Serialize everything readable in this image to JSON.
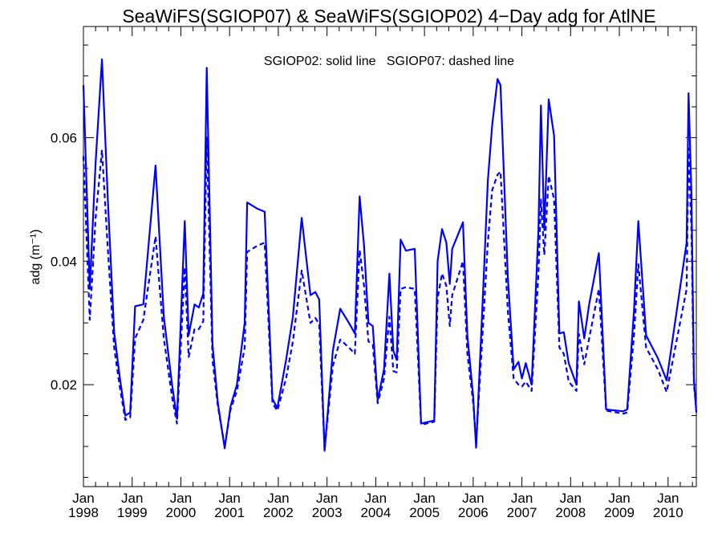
{
  "chart_data": {
    "type": "line",
    "title": "SeaWiFS(SGIOP07) & SeaWiFS(SGIOP02) 4−Day adg for AtlNE",
    "annotation": "SGIOP02: solid line   SGIOP07: dashed line",
    "xlabel": "",
    "ylabel": "adg (m⁻¹)",
    "xlim": [
      1998.0,
      2010.58
    ],
    "ylim": [
      0.0035,
      0.078
    ],
    "yticks": [
      0.02,
      0.04,
      0.06
    ],
    "ytick_labels": [
      "0.02",
      "0.04",
      "0.06"
    ],
    "x_month_labels": [
      "Jan",
      "Jan",
      "Jan",
      "Jan",
      "Jan",
      "Jan",
      "Jan",
      "Jan",
      "Jan",
      "Jan",
      "Jan",
      "Jan",
      "Jan"
    ],
    "x_year_labels": [
      "1998",
      "1999",
      "2000",
      "2001",
      "2002",
      "2003",
      "2004",
      "2005",
      "2006",
      "2007",
      "2008",
      "2009",
      "2010"
    ],
    "grid": false,
    "color": "#0000ff",
    "series": [
      {
        "name": "SGIOP02",
        "style": "solid",
        "points": [
          [
            1998.0,
            0.0685
          ],
          [
            1998.13,
            0.0355
          ],
          [
            1998.25,
            0.056
          ],
          [
            1998.38,
            0.0727
          ],
          [
            1998.5,
            0.05
          ],
          [
            1998.63,
            0.0285
          ],
          [
            1998.75,
            0.021
          ],
          [
            1998.86,
            0.015
          ],
          [
            1998.96,
            0.0155
          ],
          [
            1999.06,
            0.0327
          ],
          [
            1999.23,
            0.033
          ],
          [
            1999.48,
            0.0555
          ],
          [
            1999.65,
            0.031
          ],
          [
            1999.82,
            0.02
          ],
          [
            1999.92,
            0.0145
          ],
          [
            2000.08,
            0.0465
          ],
          [
            2000.16,
            0.028
          ],
          [
            2000.28,
            0.033
          ],
          [
            2000.37,
            0.0325
          ],
          [
            2000.46,
            0.0348
          ],
          [
            2000.53,
            0.0713
          ],
          [
            2000.65,
            0.0265
          ],
          [
            2000.76,
            0.017
          ],
          [
            2000.9,
            0.0097
          ],
          [
            2001.02,
            0.0165
          ],
          [
            2001.15,
            0.02
          ],
          [
            2001.31,
            0.03
          ],
          [
            2001.36,
            0.0495
          ],
          [
            2001.57,
            0.0485
          ],
          [
            2001.72,
            0.048
          ],
          [
            2001.88,
            0.0177
          ],
          [
            2001.98,
            0.0162
          ],
          [
            2002.16,
            0.024
          ],
          [
            2002.3,
            0.031
          ],
          [
            2002.48,
            0.047
          ],
          [
            2002.66,
            0.0345
          ],
          [
            2002.76,
            0.035
          ],
          [
            2002.84,
            0.0338
          ],
          [
            2002.95,
            0.0093
          ],
          [
            2003.12,
            0.0255
          ],
          [
            2003.27,
            0.0323
          ],
          [
            2003.45,
            0.03
          ],
          [
            2003.57,
            0.0283
          ],
          [
            2003.67,
            0.0505
          ],
          [
            2003.76,
            0.0425
          ],
          [
            2003.85,
            0.03
          ],
          [
            2003.94,
            0.0295
          ],
          [
            2004.04,
            0.0175
          ],
          [
            2004.17,
            0.0225
          ],
          [
            2004.28,
            0.038
          ],
          [
            2004.36,
            0.0255
          ],
          [
            2004.43,
            0.024
          ],
          [
            2004.51,
            0.0435
          ],
          [
            2004.62,
            0.0417
          ],
          [
            2004.8,
            0.042
          ],
          [
            2004.93,
            0.0137
          ],
          [
            2005.2,
            0.0142
          ],
          [
            2005.27,
            0.04
          ],
          [
            2005.36,
            0.0452
          ],
          [
            2005.45,
            0.043
          ],
          [
            2005.52,
            0.0363
          ],
          [
            2005.57,
            0.042
          ],
          [
            2005.79,
            0.0463
          ],
          [
            2005.88,
            0.028
          ],
          [
            2006.0,
            0.018
          ],
          [
            2006.06,
            0.0098
          ],
          [
            2006.22,
            0.038
          ],
          [
            2006.3,
            0.053
          ],
          [
            2006.39,
            0.062
          ],
          [
            2006.5,
            0.0695
          ],
          [
            2006.56,
            0.0685
          ],
          [
            2006.71,
            0.0375
          ],
          [
            2006.83,
            0.0225
          ],
          [
            2006.93,
            0.0237
          ],
          [
            2007.0,
            0.021
          ],
          [
            2007.08,
            0.0235
          ],
          [
            2007.2,
            0.02
          ],
          [
            2007.34,
            0.045
          ],
          [
            2007.39,
            0.0652
          ],
          [
            2007.46,
            0.045
          ],
          [
            2007.55,
            0.0662
          ],
          [
            2007.66,
            0.0603
          ],
          [
            2007.77,
            0.0283
          ],
          [
            2007.86,
            0.0285
          ],
          [
            2007.96,
            0.0235
          ],
          [
            2008.12,
            0.02
          ],
          [
            2008.17,
            0.0335
          ],
          [
            2008.28,
            0.0275
          ],
          [
            2008.38,
            0.033
          ],
          [
            2008.58,
            0.0413
          ],
          [
            2008.73,
            0.016
          ],
          [
            2009.08,
            0.0157
          ],
          [
            2009.16,
            0.016
          ],
          [
            2009.3,
            0.032
          ],
          [
            2009.39,
            0.0465
          ],
          [
            2009.55,
            0.028
          ],
          [
            2009.79,
            0.0243
          ],
          [
            2009.97,
            0.0207
          ],
          [
            2010.38,
            0.043
          ],
          [
            2010.42,
            0.0672
          ],
          [
            2010.48,
            0.051
          ],
          [
            2010.53,
            0.021
          ],
          [
            2010.58,
            0.0155
          ]
        ]
      },
      {
        "name": "SGIOP07",
        "style": "dashed",
        "points": [
          [
            1998.0,
            0.057
          ],
          [
            1998.13,
            0.0305
          ],
          [
            1998.25,
            0.047
          ],
          [
            1998.38,
            0.058
          ],
          [
            1998.5,
            0.042
          ],
          [
            1998.63,
            0.026
          ],
          [
            1998.75,
            0.0195
          ],
          [
            1998.86,
            0.0143
          ],
          [
            1998.96,
            0.0147
          ],
          [
            1999.06,
            0.0275
          ],
          [
            1999.23,
            0.0305
          ],
          [
            1999.48,
            0.044
          ],
          [
            1999.65,
            0.0275
          ],
          [
            1999.82,
            0.018
          ],
          [
            1999.92,
            0.0137
          ],
          [
            2000.08,
            0.039
          ],
          [
            2000.16,
            0.0245
          ],
          [
            2000.28,
            0.029
          ],
          [
            2000.37,
            0.029
          ],
          [
            2000.46,
            0.0303
          ],
          [
            2000.53,
            0.06
          ],
          [
            2000.65,
            0.024
          ],
          [
            2000.76,
            0.0165
          ],
          [
            2000.9,
            0.01
          ],
          [
            2001.02,
            0.016
          ],
          [
            2001.15,
            0.019
          ],
          [
            2001.31,
            0.026
          ],
          [
            2001.36,
            0.0415
          ],
          [
            2001.57,
            0.0425
          ],
          [
            2001.72,
            0.043
          ],
          [
            2001.88,
            0.017
          ],
          [
            2001.98,
            0.0158
          ],
          [
            2002.16,
            0.021
          ],
          [
            2002.3,
            0.027
          ],
          [
            2002.48,
            0.0385
          ],
          [
            2002.66,
            0.03
          ],
          [
            2002.76,
            0.0308
          ],
          [
            2002.84,
            0.0298
          ],
          [
            2002.95,
            0.0095
          ],
          [
            2003.12,
            0.023
          ],
          [
            2003.27,
            0.0273
          ],
          [
            2003.45,
            0.026
          ],
          [
            2003.57,
            0.025
          ],
          [
            2003.67,
            0.0418
          ],
          [
            2003.76,
            0.036
          ],
          [
            2003.85,
            0.027
          ],
          [
            2003.94,
            0.0265
          ],
          [
            2004.04,
            0.017
          ],
          [
            2004.17,
            0.021
          ],
          [
            2004.28,
            0.031
          ],
          [
            2004.36,
            0.0222
          ],
          [
            2004.43,
            0.022
          ],
          [
            2004.51,
            0.0355
          ],
          [
            2004.62,
            0.0358
          ],
          [
            2004.8,
            0.0355
          ],
          [
            2004.93,
            0.0135
          ],
          [
            2005.2,
            0.014
          ],
          [
            2005.27,
            0.034
          ],
          [
            2005.36,
            0.038
          ],
          [
            2005.45,
            0.036
          ],
          [
            2005.52,
            0.0295
          ],
          [
            2005.57,
            0.0345
          ],
          [
            2005.79,
            0.04
          ],
          [
            2005.88,
            0.025
          ],
          [
            2006.0,
            0.017
          ],
          [
            2006.06,
            0.0105
          ],
          [
            2006.22,
            0.032
          ],
          [
            2006.3,
            0.043
          ],
          [
            2006.39,
            0.0515
          ],
          [
            2006.5,
            0.054
          ],
          [
            2006.56,
            0.0545
          ],
          [
            2006.71,
            0.032
          ],
          [
            2006.83,
            0.021
          ],
          [
            2006.93,
            0.02
          ],
          [
            2007.0,
            0.0197
          ],
          [
            2007.08,
            0.0205
          ],
          [
            2007.2,
            0.019
          ],
          [
            2007.34,
            0.038
          ],
          [
            2007.39,
            0.05
          ],
          [
            2007.46,
            0.041
          ],
          [
            2007.55,
            0.0538
          ],
          [
            2007.66,
            0.05
          ],
          [
            2007.77,
            0.026
          ],
          [
            2007.86,
            0.025
          ],
          [
            2007.96,
            0.0205
          ],
          [
            2008.12,
            0.019
          ],
          [
            2008.17,
            0.0282
          ],
          [
            2008.28,
            0.0233
          ],
          [
            2008.38,
            0.0275
          ],
          [
            2008.58,
            0.0355
          ],
          [
            2008.73,
            0.0158
          ],
          [
            2009.08,
            0.0153
          ],
          [
            2009.16,
            0.0155
          ],
          [
            2009.3,
            0.028
          ],
          [
            2009.39,
            0.0395
          ],
          [
            2009.55,
            0.026
          ],
          [
            2009.79,
            0.0225
          ],
          [
            2009.97,
            0.0188
          ],
          [
            2010.38,
            0.0355
          ],
          [
            2010.42,
            0.0583
          ],
          [
            2010.48,
            0.045
          ],
          [
            2010.53,
            0.02
          ],
          [
            2010.58,
            0.016
          ]
        ]
      }
    ]
  }
}
